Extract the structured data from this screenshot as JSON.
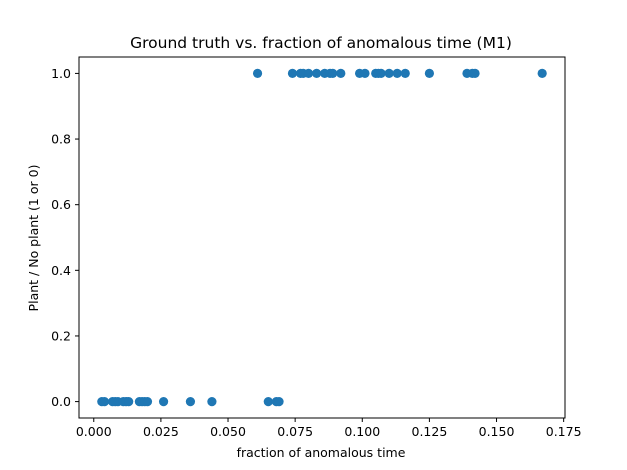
{
  "chart_data": {
    "type": "scatter",
    "title": "Ground truth vs. fraction of anomalous time (M1)",
    "xlabel": "fraction of anomalous time",
    "ylabel": "Plant / No plant (1 or 0)",
    "xlim": [
      -0.0055,
      0.1755
    ],
    "ylim": [
      -0.05,
      1.05
    ],
    "xticks": [
      0.0,
      0.025,
      0.05,
      0.075,
      0.1,
      0.125,
      0.15,
      0.175
    ],
    "xtick_labels": [
      "0.000",
      "0.025",
      "0.050",
      "0.075",
      "0.100",
      "0.125",
      "0.150",
      "0.175"
    ],
    "yticks": [
      0.0,
      0.2,
      0.4,
      0.6,
      0.8,
      1.0
    ],
    "ytick_labels": [
      "0.0",
      "0.2",
      "0.4",
      "0.6",
      "0.8",
      "1.0"
    ],
    "grid": false,
    "marker_color": "#1f77b4",
    "x": [
      0.003,
      0.004,
      0.007,
      0.008,
      0.009,
      0.011,
      0.012,
      0.013,
      0.017,
      0.018,
      0.019,
      0.02,
      0.026,
      0.036,
      0.044,
      0.065,
      0.068,
      0.069,
      0.061,
      0.074,
      0.077,
      0.078,
      0.08,
      0.083,
      0.086,
      0.088,
      0.089,
      0.092,
      0.099,
      0.101,
      0.105,
      0.106,
      0.107,
      0.11,
      0.113,
      0.116,
      0.125,
      0.139,
      0.141,
      0.142,
      0.167
    ],
    "y": [
      0,
      0,
      0,
      0,
      0,
      0,
      0,
      0,
      0,
      0,
      0,
      0,
      0,
      0,
      0,
      0,
      0,
      0,
      1,
      1,
      1,
      1,
      1,
      1,
      1,
      1,
      1,
      1,
      1,
      1,
      1,
      1,
      1,
      1,
      1,
      1,
      1,
      1,
      1,
      1,
      1
    ]
  }
}
